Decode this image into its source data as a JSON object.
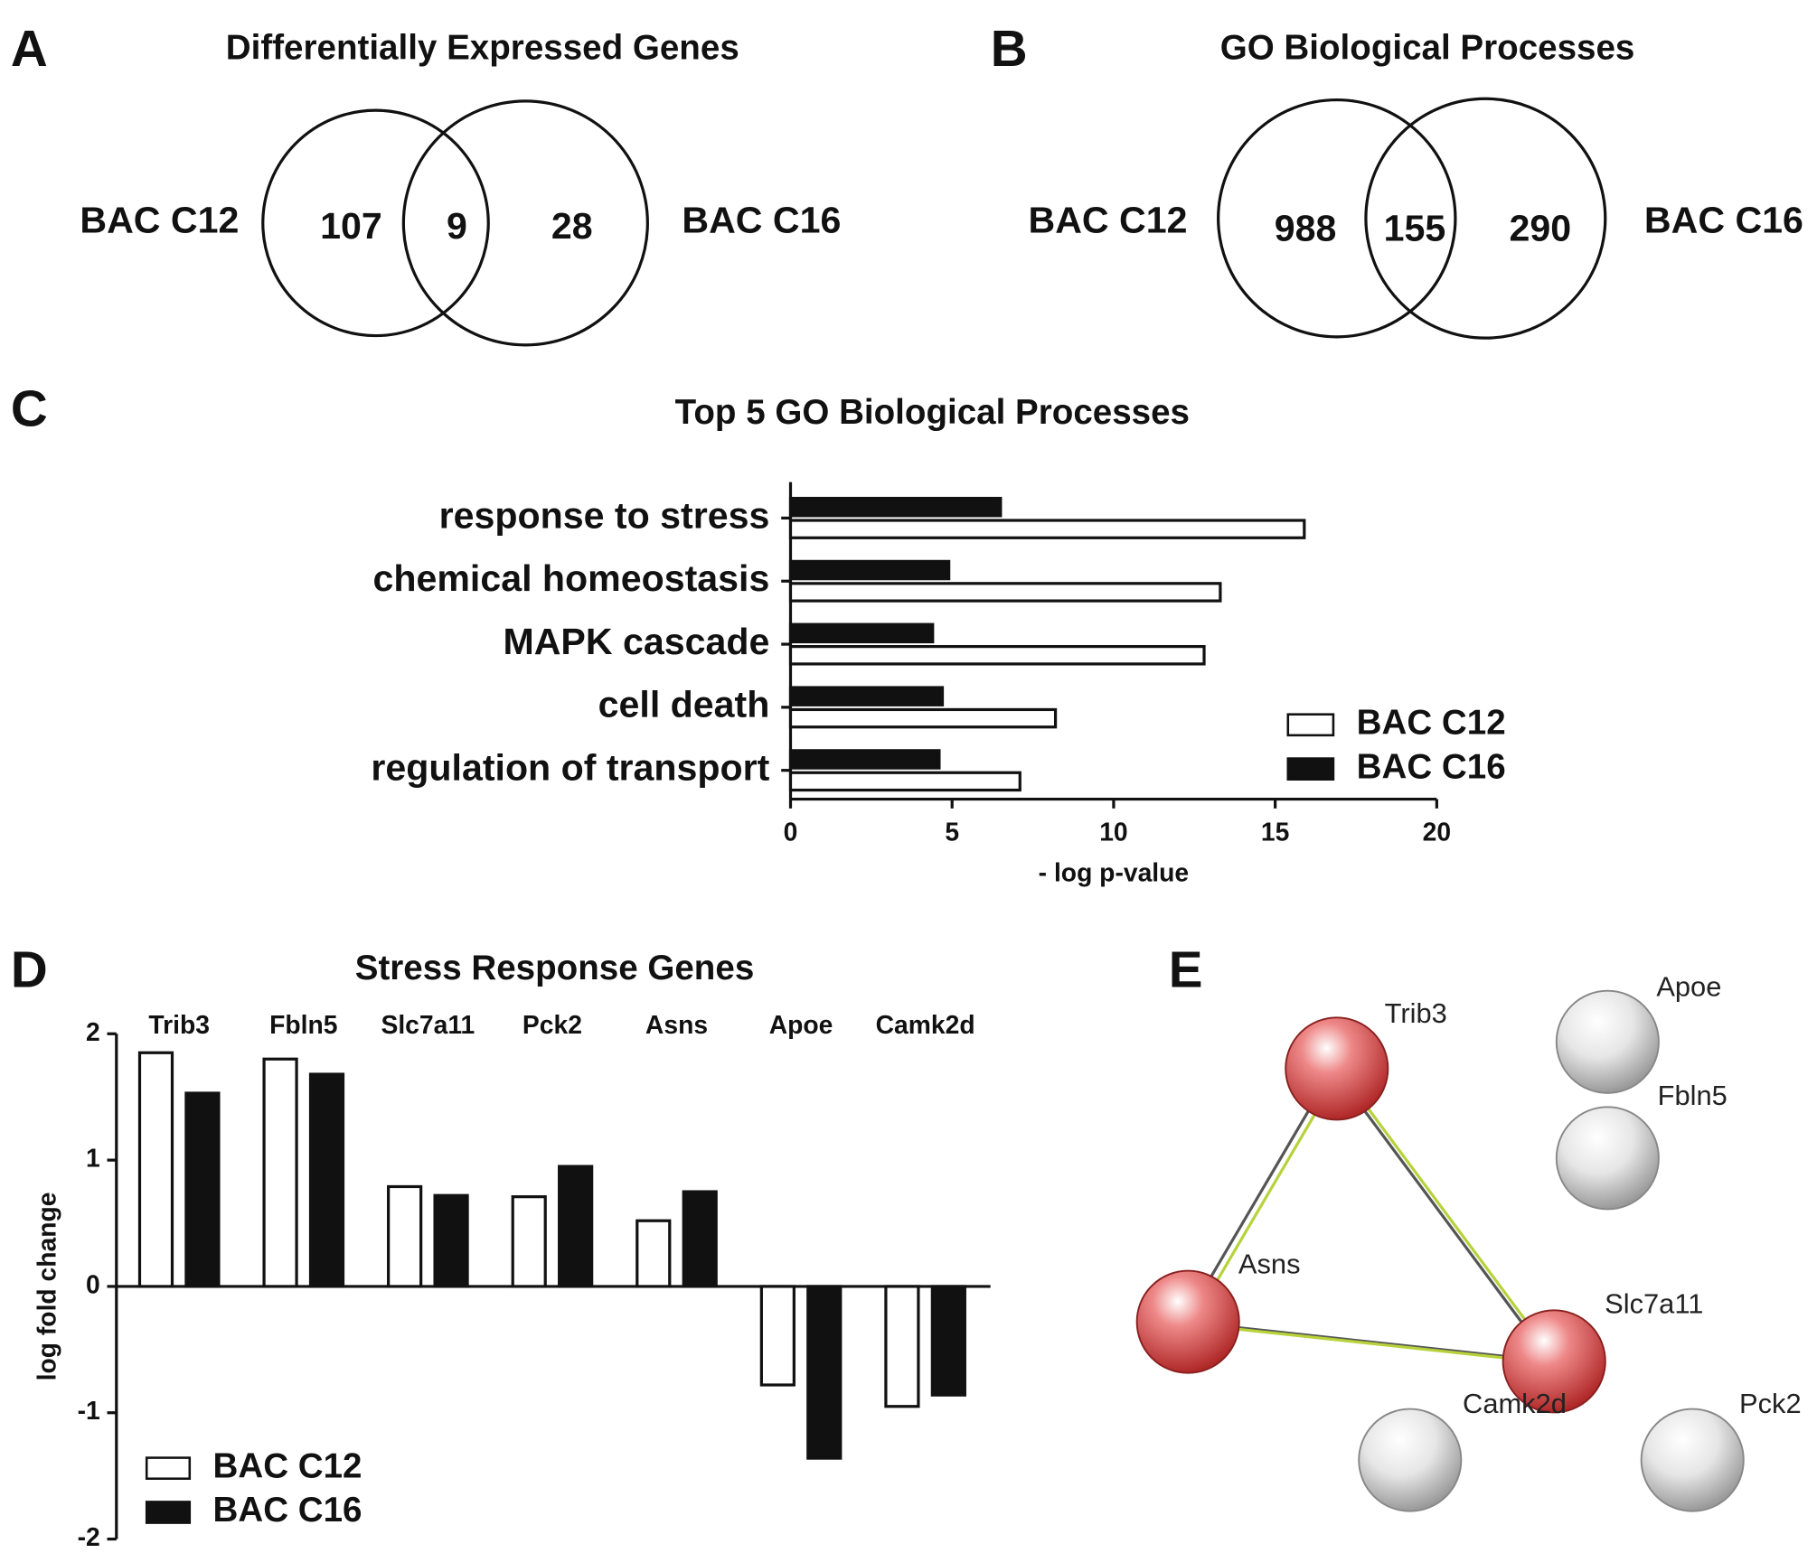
{
  "chart_data": [
    {
      "type": "venn",
      "panel_label": "A",
      "title": "Differentially Expressed Genes",
      "sets": [
        "BAC C12",
        "BAC C16"
      ],
      "values": [
        107,
        9,
        28
      ]
    },
    {
      "type": "venn",
      "panel_label": "B",
      "title": "GO Biological Processes",
      "sets": [
        "BAC C12",
        "BAC C16"
      ],
      "values": [
        988,
        155,
        290
      ]
    },
    {
      "type": "bar",
      "orientation": "horizontal",
      "panel_label": "C",
      "title": "Top 5 GO Biological Processes",
      "categories": [
        "response to stress",
        "chemical homeostasis",
        "MAPK cascade",
        "cell death",
        "regulation of transport"
      ],
      "series": [
        {
          "name": "BAC C12",
          "color": "#ffffff",
          "values": [
            15.9,
            13.3,
            12.8,
            8.2,
            7.1
          ]
        },
        {
          "name": "BAC C16",
          "color": "#111111",
          "values": [
            6.5,
            4.9,
            4.4,
            4.7,
            4.6
          ]
        }
      ],
      "xlabel": "- log p-value",
      "xlim": [
        0,
        20
      ],
      "xticks": [
        0,
        5,
        10,
        15,
        20
      ],
      "legend": "lower right"
    },
    {
      "type": "bar",
      "orientation": "vertical",
      "panel_label": "D",
      "title": "Stress Response Genes",
      "categories": [
        "Trib3",
        "Fbln5",
        "Slc7a11",
        "Pck2",
        "Asns",
        "Apoe",
        "Camk2d"
      ],
      "series": [
        {
          "name": "BAC C12",
          "color": "#ffffff",
          "values": [
            1.85,
            1.8,
            0.79,
            0.71,
            0.52,
            -0.78,
            -0.95
          ]
        },
        {
          "name": "BAC C16",
          "color": "#111111",
          "values": [
            1.53,
            1.68,
            0.72,
            0.95,
            0.75,
            -1.36,
            -0.86
          ]
        }
      ],
      "ylabel": "log fold change",
      "ylim": [
        -2,
        2
      ],
      "yticks": [
        -2,
        -1,
        0,
        1,
        2
      ],
      "legend": "lower left"
    },
    {
      "type": "network",
      "panel_label": "E",
      "nodes": [
        {
          "label": "Trib3",
          "color": "red"
        },
        {
          "label": "Apoe",
          "color": "grey"
        },
        {
          "label": "Fbln5",
          "color": "grey"
        },
        {
          "label": "Asns",
          "color": "red"
        },
        {
          "label": "Slc7a11",
          "color": "red"
        },
        {
          "label": "Camk2d",
          "color": "grey"
        },
        {
          "label": "Pck2",
          "color": "grey"
        }
      ]
    }
  ]
}
